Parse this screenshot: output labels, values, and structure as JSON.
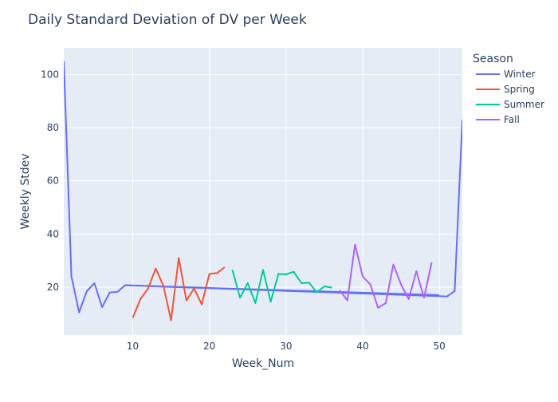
{
  "chart_data": {
    "type": "line",
    "title": "Daily Standard Deviation of DV per Week",
    "xlabel": "Week_Num",
    "ylabel": "Weekly Stdev",
    "xlim": [
      1,
      53
    ],
    "ylim": [
      2,
      110
    ],
    "x_ticks": [
      10,
      20,
      30,
      40,
      50
    ],
    "y_ticks": [
      20,
      40,
      60,
      80,
      100
    ],
    "grid": true,
    "legend": {
      "title": "Season",
      "placement": "right"
    },
    "series": [
      {
        "name": "Winter",
        "color": "#636efa",
        "x": [
          1,
          2,
          3,
          4,
          5,
          6,
          7,
          8,
          9,
          51,
          52,
          53
        ],
        "y": [
          105,
          24,
          10.5,
          18.5,
          21.5,
          12.5,
          18,
          18.2,
          20.7,
          16.5,
          18.5,
          83
        ]
      },
      {
        "name": "Spring",
        "color": "#ef553b",
        "x": [
          10,
          11,
          12,
          13,
          14,
          15,
          16,
          17,
          18,
          19,
          20,
          21,
          22
        ],
        "y": [
          8.5,
          15.5,
          19.5,
          27,
          20.5,
          7.5,
          31,
          15,
          19.5,
          13.5,
          25,
          25.3,
          27.5
        ]
      },
      {
        "name": "Summer",
        "color": "#00cc96",
        "x": [
          23,
          24,
          25,
          26,
          27,
          28,
          29,
          30,
          31,
          32,
          33,
          34,
          35,
          36
        ],
        "y": [
          26.5,
          16,
          21.5,
          14,
          26.5,
          14.5,
          25,
          24.8,
          25.8,
          21.5,
          21.7,
          18,
          20.3,
          19.8
        ]
      },
      {
        "name": "Fall",
        "color": "#ab63fa",
        "x": [
          37,
          38,
          39,
          40,
          41,
          42,
          43,
          44,
          45,
          46,
          47,
          48,
          49
        ],
        "y": [
          18.8,
          15,
          36,
          24,
          21,
          12.2,
          14,
          28.5,
          21,
          15.5,
          26,
          16,
          29.3
        ]
      }
    ],
    "trend_line": {
      "color": "#636efa",
      "x": [
        9,
        50
      ],
      "y": [
        20.7,
        17
      ]
    }
  }
}
